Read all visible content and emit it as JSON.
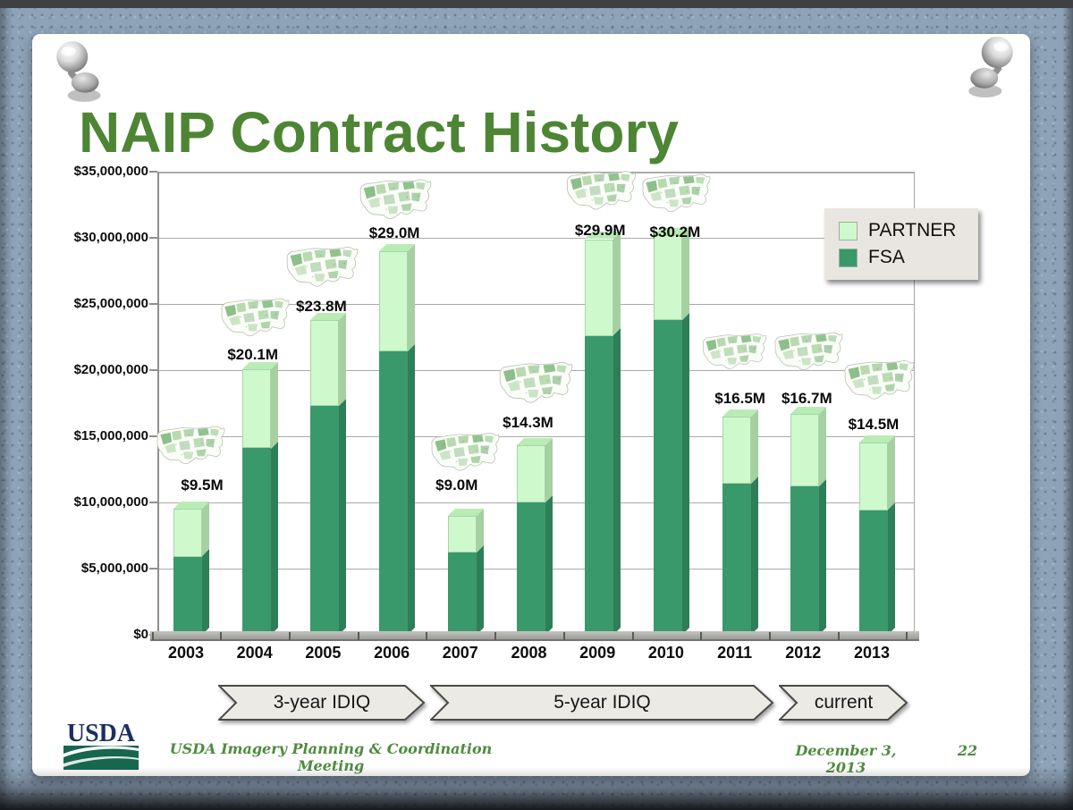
{
  "page": {
    "title": "NAIP Contract History",
    "footer": {
      "meeting": "USDA Imagery Planning & Coordination Meeting",
      "date": "December 3, 2013",
      "page_number": "22"
    },
    "logo_text": "USDA"
  },
  "banners": [
    {
      "label": "3-year IDIQ"
    },
    {
      "label": "5-year IDIQ"
    },
    {
      "label": "current"
    }
  ],
  "chart_data": {
    "type": "bar",
    "stacked": true,
    "title": "NAIP Contract History",
    "categories": [
      "2003",
      "2004",
      "2005",
      "2006",
      "2007",
      "2008",
      "2009",
      "2010",
      "2011",
      "2012",
      "2013"
    ],
    "series": [
      {
        "name": "FSA",
        "color": "#39996b",
        "values_millions": [
          5.9,
          14.1,
          17.3,
          21.4,
          6.2,
          10.0,
          22.6,
          23.8,
          11.4,
          11.2,
          9.4
        ]
      },
      {
        "name": "PARTNER",
        "color": "#cdf9cc",
        "values_millions": [
          3.6,
          6.0,
          6.5,
          7.6,
          2.8,
          4.3,
          7.3,
          6.4,
          5.1,
          5.5,
          5.1
        ]
      }
    ],
    "totals_millions": [
      9.5,
      20.1,
      23.8,
      29.0,
      9.0,
      14.3,
      29.9,
      30.2,
      16.5,
      16.7,
      14.5
    ],
    "total_labels": [
      "$9.5M",
      "$20.1M",
      "$23.8M",
      "$29.0M",
      "$9.0M",
      "$14.3M",
      "$29.9M",
      "$30.2M",
      "$16.5M",
      "$16.7M",
      "$14.5M"
    ],
    "y_axis": {
      "min": 0,
      "max": 35000000,
      "tick_step": 5000000,
      "ticks": [
        "$0",
        "$5,000,000",
        "$10,000,000",
        "$15,000,000",
        "$20,000,000",
        "$25,000,000",
        "$30,000,000",
        "$35,000,000"
      ]
    },
    "legend": {
      "position": "upper-right",
      "items": [
        {
          "label": "PARTNER",
          "color": "#cdf9cc"
        },
        {
          "label": "FSA",
          "color": "#39996b"
        }
      ]
    },
    "gridlines": true,
    "annotations": "small US map thumbnail above each bar"
  }
}
